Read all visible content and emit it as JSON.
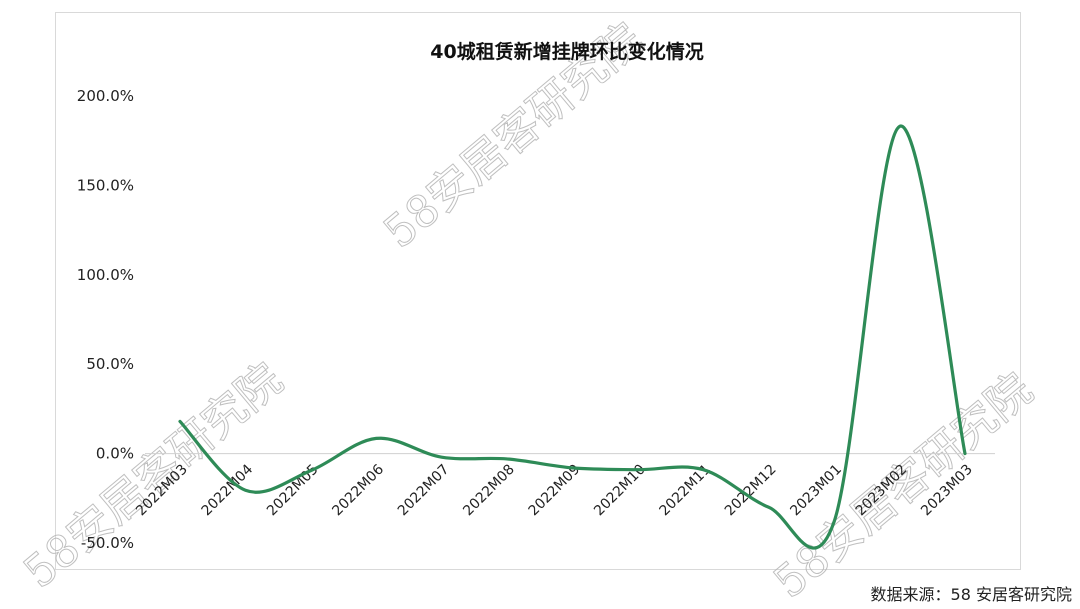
{
  "chart_data": {
    "type": "line",
    "title": "40城租赁新增挂牌环比变化情况",
    "xlabel": "",
    "ylabel": "",
    "categories": [
      "2022M03",
      "2022M04",
      "2022M05",
      "2022M06",
      "2022M07",
      "2022M08",
      "2022M09",
      "2022M10",
      "2022M11",
      "2022M12",
      "2023M01",
      "2023M02",
      "2023M03"
    ],
    "series": [
      {
        "values": [
          18.0,
          -20.5,
          -9.5,
          8.5,
          -2.0,
          -3.0,
          -8.0,
          -9.0,
          -9.0,
          -30.0,
          -38.0,
          183.0,
          0.0
        ],
        "color": "#2e8b57"
      }
    ],
    "yticks": [
      "200.0%",
      "150.0%",
      "100.0%",
      "50.0%",
      "0.0%",
      "-50.0%"
    ],
    "ylim": [
      -50,
      200
    ],
    "grid": false,
    "smooth": true
  },
  "source": "数据来源：58 安居客研究院",
  "watermark": "58安居客研究院"
}
